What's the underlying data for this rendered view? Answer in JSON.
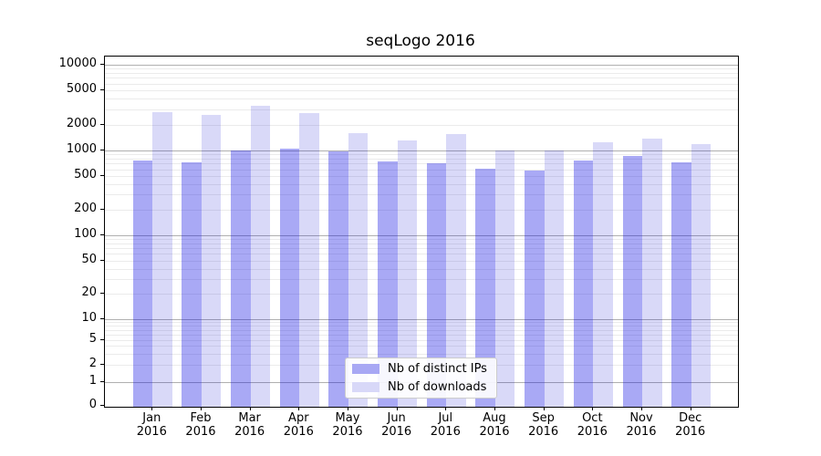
{
  "title": "seqLogo 2016",
  "legend": {
    "items": [
      {
        "label": "Nb of distinct IPs",
        "color": "#a8a8f4"
      },
      {
        "label": "Nb of downloads",
        "color": "#d8d8f8"
      }
    ]
  },
  "chart_data": {
    "type": "bar",
    "title": "seqLogo 2016",
    "categories": [
      "Jan 2016",
      "Feb 2016",
      "Mar 2016",
      "Apr 2016",
      "May 2016",
      "Jun 2016",
      "Jul 2016",
      "Aug 2016",
      "Sep 2016",
      "Oct 2016",
      "Nov 2016",
      "Dec 2016"
    ],
    "months": [
      "Jan",
      "Feb",
      "Mar",
      "Apr",
      "May",
      "Jun",
      "Jul",
      "Aug",
      "Sep",
      "Oct",
      "Nov",
      "Dec"
    ],
    "year": "2016",
    "series": [
      {
        "name": "Nb of distinct IPs",
        "legend_color": "#a8a8f4",
        "fill": "rgba(10,10,225,0.35)",
        "values": [
          750,
          720,
          1000,
          1050,
          970,
          740,
          700,
          605,
          580,
          760,
          860,
          720
        ]
      },
      {
        "name": "Nb of downloads",
        "legend_color": "#d8d8f8",
        "fill": "rgba(0,0,210,0.15)",
        "values": [
          2800,
          2600,
          3300,
          2700,
          1600,
          1300,
          1550,
          990,
          980,
          1230,
          1380,
          1190
        ]
      }
    ],
    "yscale": "symlog",
    "y_ticks": [
      10000,
      5000,
      2000,
      1000,
      500,
      200,
      100,
      50,
      20,
      10,
      5,
      2,
      1,
      0
    ],
    "ylim": [
      0,
      12500
    ],
    "xlabel": "",
    "ylabel": "",
    "grid": true,
    "grid_major_color": "#b0b0b0",
    "grid_minor_color": "#ebebeb",
    "legend_position": "lower center"
  }
}
